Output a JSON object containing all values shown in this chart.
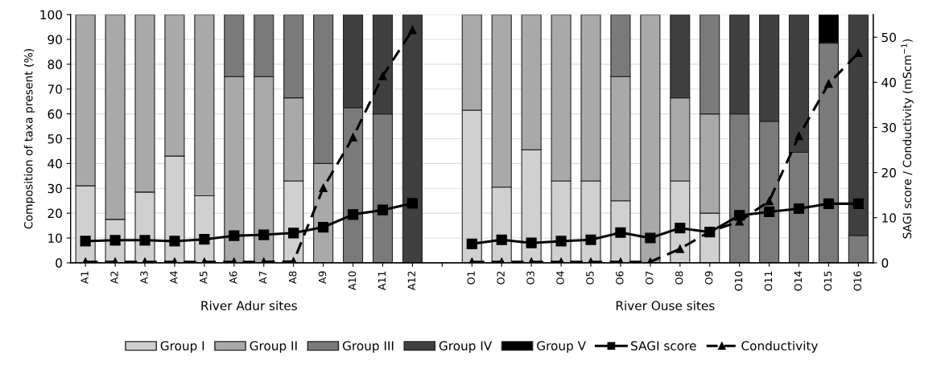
{
  "chart_data": {
    "type": "bar",
    "stacked": true,
    "ylabel": "Composition of taxa present (%)",
    "y2label": "SAGI score / Conductivity (mScm$^{−1}$)",
    "categories": [
      "A1",
      "A2",
      "A3",
      "A4",
      "A5",
      "A6",
      "A7",
      "A8",
      "A9",
      "A10",
      "A11",
      "A12",
      null,
      "O1",
      "O2",
      "O3",
      "O4",
      "O5",
      "O6",
      "O7",
      "O8",
      "O9",
      "O10",
      "O11",
      "O14",
      "O15",
      "O16"
    ],
    "series": [
      {
        "name": "Group I",
        "color": "#d0d0d0",
        "values": [
          31,
          17.5,
          28.5,
          43,
          27,
          null,
          null,
          33,
          null,
          null,
          null,
          null,
          null,
          61.5,
          30.5,
          45.5,
          33,
          33,
          25,
          null,
          33,
          20,
          null,
          null,
          null,
          null,
          null
        ]
      },
      {
        "name": "Group II",
        "color": "#a9a9a9",
        "values": [
          69,
          82.5,
          71.5,
          57,
          73,
          75,
          75,
          33.5,
          40,
          null,
          null,
          null,
          null,
          38.5,
          69.5,
          54.5,
          67,
          67,
          50,
          100,
          33.5,
          40,
          null,
          null,
          null,
          null,
          null
        ]
      },
      {
        "name": "Group III",
        "color": "#7a7a7a",
        "values": [
          null,
          null,
          null,
          null,
          null,
          25,
          25,
          33.5,
          60,
          62.5,
          60,
          null,
          null,
          null,
          null,
          null,
          null,
          null,
          25,
          null,
          null,
          40,
          60,
          57,
          44.5,
          88.5,
          11
        ]
      },
      {
        "name": "Group IV",
        "color": "#404040",
        "values": [
          null,
          null,
          null,
          null,
          null,
          null,
          null,
          null,
          null,
          37.5,
          40,
          100,
          null,
          null,
          null,
          null,
          null,
          null,
          null,
          null,
          33.5,
          null,
          40,
          43,
          55.5,
          null,
          89
        ]
      },
      {
        "name": "Group V",
        "color": "#000000",
        "values": [
          null,
          null,
          null,
          null,
          null,
          null,
          null,
          null,
          null,
          null,
          null,
          null,
          null,
          null,
          null,
          null,
          null,
          null,
          null,
          null,
          null,
          null,
          null,
          null,
          null,
          11.5,
          null
        ]
      },
      {
        "name": "SAGI score",
        "type": "line",
        "axis": "y2",
        "color": "#000000",
        "marker": "square",
        "line_style": "solid",
        "values": [
          4.8,
          5.0,
          5.0,
          4.8,
          5.2,
          6.0,
          6.2,
          6.6,
          7.9,
          10.7,
          11.7,
          13.2,
          null,
          4.2,
          5.1,
          4.4,
          4.8,
          5.1,
          6.7,
          5.5,
          7.7,
          6.8,
          10.5,
          11.3,
          12.0,
          13.1,
          13.1
        ]
      },
      {
        "name": "Conductivity",
        "type": "line",
        "axis": "y2",
        "color": "#000000",
        "marker": "triangle",
        "line_style": "dashed",
        "values": [
          0.2,
          0.2,
          0.2,
          0.2,
          0.2,
          0.2,
          0.2,
          0.3,
          16.6,
          27.8,
          41.4,
          51.6,
          null,
          0.2,
          0.2,
          0.2,
          0.2,
          0.2,
          0.2,
          0.2,
          3.1,
          6.9,
          9.2,
          13.7,
          28.1,
          39.7,
          46.5
        ]
      }
    ],
    "ylim": [
      0,
      100
    ],
    "yticks": [
      0,
      10,
      20,
      30,
      40,
      50,
      60,
      70,
      80,
      90,
      100
    ],
    "y2lim": [
      0,
      55
    ],
    "y2ticks": [
      0,
      10,
      20,
      30,
      40,
      50
    ],
    "grid": "y",
    "legend": "bottom",
    "annotations": [
      "River Adur sites",
      "River Ouse sites"
    ]
  }
}
